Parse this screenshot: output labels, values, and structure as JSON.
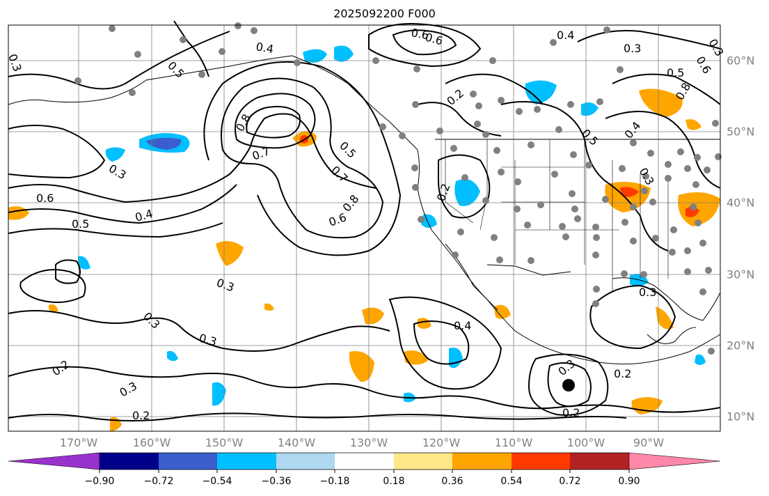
{
  "title": "2025092200 F000",
  "map": {
    "lon_labels": [
      "170°W",
      "160°W",
      "150°W",
      "140°W",
      "130°W",
      "120°W",
      "110°W",
      "100°W",
      "90°W"
    ],
    "lat_labels": [
      "60°N",
      "50°N",
      "40°N",
      "30°N",
      "20°N",
      "10°N"
    ],
    "contour_labels": [
      "0.2",
      "0.3",
      "0.3",
      "0.4",
      "0.5",
      "0.6",
      "0.7",
      "0.8",
      "0.6",
      "0.7",
      "0.8",
      "0.5",
      "0.6",
      "0.4",
      "0.5",
      "0.3",
      "0.3",
      "0.3",
      "0.3",
      "0.4",
      "0.2",
      "0.2",
      "0.3",
      "0.2",
      "0.3",
      "0.2",
      "0.3",
      "0.2",
      "0.4",
      "0.5",
      "0.6",
      "0.8",
      "0.6",
      "0.3",
      "0.4",
      "0.3",
      "0.5"
    ],
    "colors": {
      "line": "#000000",
      "station_dot": "#808080",
      "grid": "#808080"
    }
  },
  "colorbar": {
    "ticks": [
      "−0.90",
      "−0.72",
      "−0.54",
      "−0.36",
      "−0.18",
      "0.18",
      "0.36",
      "0.54",
      "0.72",
      "0.90"
    ],
    "colors": [
      "#9932cc",
      "#00008b",
      "#3a5fcd",
      "#00bfff",
      "#add8f0",
      "#ffffff",
      "#ffe78a",
      "#ffa500",
      "#ff3a00",
      "#b22222",
      "#ff88aa"
    ]
  }
}
